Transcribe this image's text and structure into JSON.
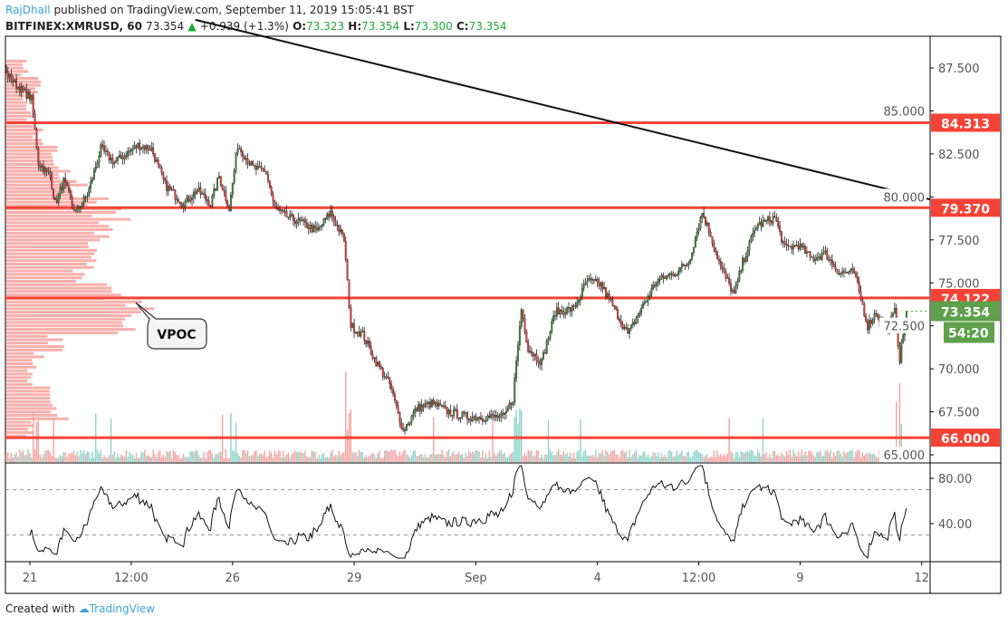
{
  "header": {
    "author": "RajDhall",
    "published": "published on TradingView.com, September 11, 2019 15:05:41 BST",
    "symbol": "BITFINEX:XMRUSD, 60",
    "last": "73.354",
    "change": "+0.939 (+1.3%)",
    "o_label": "O:",
    "o": "73.323",
    "h_label": "H:",
    "h": "73.354",
    "l_label": "L:",
    "l": "73.300",
    "c_label": "C:",
    "c": "73.354"
  },
  "footer": {
    "created_with": "Created with",
    "brand": "TradingView"
  },
  "colors": {
    "up": "#3d8b37",
    "down": "#e53935",
    "level": "#f44336",
    "last_price": "#5ea04c",
    "vol_up": "#8fd3c8",
    "vol_down": "#f5a3a0",
    "profile": "#f7a29c"
  },
  "chart_data": {
    "type": "candlestick",
    "price_axis": {
      "ylim": [
        64.5,
        89.5
      ],
      "ticks": [
        "87.500",
        "85.000",
        "82.500",
        "80.000",
        "77.500",
        "75.000",
        "72.500",
        "70.000",
        "67.500",
        "65.000"
      ]
    },
    "time_axis": {
      "ticks": [
        {
          "t": "08-21 00:00",
          "label": "21"
        },
        {
          "t": "08-23 12:00",
          "label": "12:00"
        },
        {
          "t": "08-26 00:00",
          "label": "26"
        },
        {
          "t": "08-29 00:00",
          "label": "29"
        },
        {
          "t": "09-01 00:00",
          "label": "Sep"
        },
        {
          "t": "09-04 00:00",
          "label": "4"
        },
        {
          "t": "09-06 12:00",
          "label": "12:00"
        },
        {
          "t": "09-09 00:00",
          "label": "9"
        },
        {
          "t": "09-12 00:00",
          "label": "12"
        }
      ]
    },
    "close_path": [
      [
        "08-20 10:00",
        87.2
      ],
      [
        "08-20 17:00",
        86.4
      ],
      [
        "08-21 01:00",
        85.7
      ],
      [
        "08-21 05:00",
        82.0
      ],
      [
        "08-21 12:00",
        81.2
      ],
      [
        "08-21 15:00",
        79.6
      ],
      [
        "08-21 20:00",
        80.9
      ],
      [
        "08-22 03:00",
        79.1
      ],
      [
        "08-22 10:00",
        80.1
      ],
      [
        "08-22 18:00",
        82.8
      ],
      [
        "08-23 02:00",
        82.0
      ],
      [
        "08-23 16:00",
        83.0
      ],
      [
        "08-24 00:00",
        82.8
      ],
      [
        "08-24 08:00",
        80.7
      ],
      [
        "08-24 19:00",
        79.6
      ],
      [
        "08-25 03:00",
        80.4
      ],
      [
        "08-25 11:00",
        79.6
      ],
      [
        "08-25 16:00",
        81.2
      ],
      [
        "08-25 22:00",
        79.3
      ],
      [
        "08-26 03:00",
        83.0
      ],
      [
        "08-26 12:00",
        81.7
      ],
      [
        "08-26 20:00",
        81.4
      ],
      [
        "08-27 01:00",
        79.3
      ],
      [
        "08-27 09:00",
        78.8
      ],
      [
        "08-27 17:00",
        78.5
      ],
      [
        "08-28 02:00",
        78.0
      ],
      [
        "08-28 10:00",
        79.1
      ],
      [
        "08-28 18:00",
        77.5
      ],
      [
        "08-28 22:00",
        72.5
      ],
      [
        "08-29 05:00",
        72.0
      ],
      [
        "08-29 13:00",
        70.4
      ],
      [
        "08-29 21:00",
        69.1
      ],
      [
        "08-30 05:00",
        66.4
      ],
      [
        "08-30 13:00",
        67.7
      ],
      [
        "08-30 22:00",
        68.0
      ],
      [
        "08-31 08:00",
        67.5
      ],
      [
        "08-31 19:00",
        67.2
      ],
      [
        "09-01 17:00",
        67.2
      ],
      [
        "09-01 22:00",
        68.3
      ],
      [
        "09-02 03:00",
        73.5
      ],
      [
        "09-02 07:00",
        71.2
      ],
      [
        "09-02 15:00",
        70.4
      ],
      [
        "09-02 23:00",
        73.3
      ],
      [
        "09-03 10:00",
        73.5
      ],
      [
        "09-03 18:00",
        75.1
      ],
      [
        "09-04 02:00",
        74.9
      ],
      [
        "09-04 10:00",
        73.5
      ],
      [
        "09-04 18:00",
        72.0
      ],
      [
        "09-05 02:00",
        73.5
      ],
      [
        "09-05 11:00",
        75.1
      ],
      [
        "09-05 22:00",
        75.6
      ],
      [
        "09-06 06:00",
        76.2
      ],
      [
        "09-06 14:00",
        79.1
      ],
      [
        "09-06 19:00",
        77.8
      ],
      [
        "09-07 01:00",
        75.9
      ],
      [
        "09-07 09:00",
        74.3
      ],
      [
        "09-07 14:00",
        76.2
      ],
      [
        "09-07 22:00",
        78.3
      ],
      [
        "09-08 09:00",
        78.8
      ],
      [
        "09-08 15:00",
        77.0
      ],
      [
        "09-08 23:00",
        77.2
      ],
      [
        "09-09 07:00",
        76.4
      ],
      [
        "09-09 15:00",
        76.7
      ],
      [
        "09-09 23:00",
        75.6
      ],
      [
        "09-10 08:00",
        75.6
      ],
      [
        "09-10 16:00",
        72.5
      ],
      [
        "09-10 21:00",
        73.3
      ],
      [
        "09-11 03:00",
        72.2
      ],
      [
        "09-11 08:00",
        73.3
      ],
      [
        "09-11 11:00",
        70.6
      ],
      [
        "09-11 15:00",
        73.354
      ]
    ],
    "horizontal_levels": [
      84.313,
      79.37,
      74.122,
      66.0
    ],
    "level_labels": [
      "84.313",
      "79.370",
      "74.122",
      "66.000"
    ],
    "trendline": [
      [
        "08-25 02:00",
        90.3
      ],
      [
        "09-12 05:00",
        79.85
      ]
    ],
    "last_price_label": "73.354",
    "countdown": "54:20",
    "volume_profile": {
      "bucket_low": [
        87,
        86,
        85,
        84,
        83,
        82,
        81,
        80,
        79,
        78,
        77,
        76,
        75,
        74,
        73,
        72,
        71,
        70,
        69,
        68,
        67,
        66
      ],
      "relative_volume": [
        15,
        25,
        15,
        20,
        25,
        35,
        45,
        55,
        80,
        85,
        70,
        75,
        60,
        80,
        100,
        100,
        40,
        25,
        20,
        30,
        45,
        20
      ]
    },
    "annotation": "VPOC",
    "rsi": {
      "period": 14,
      "ticks": [
        "80.00",
        "40.00"
      ],
      "bands": [
        70,
        30
      ],
      "ylim": [
        20,
        92
      ]
    }
  }
}
